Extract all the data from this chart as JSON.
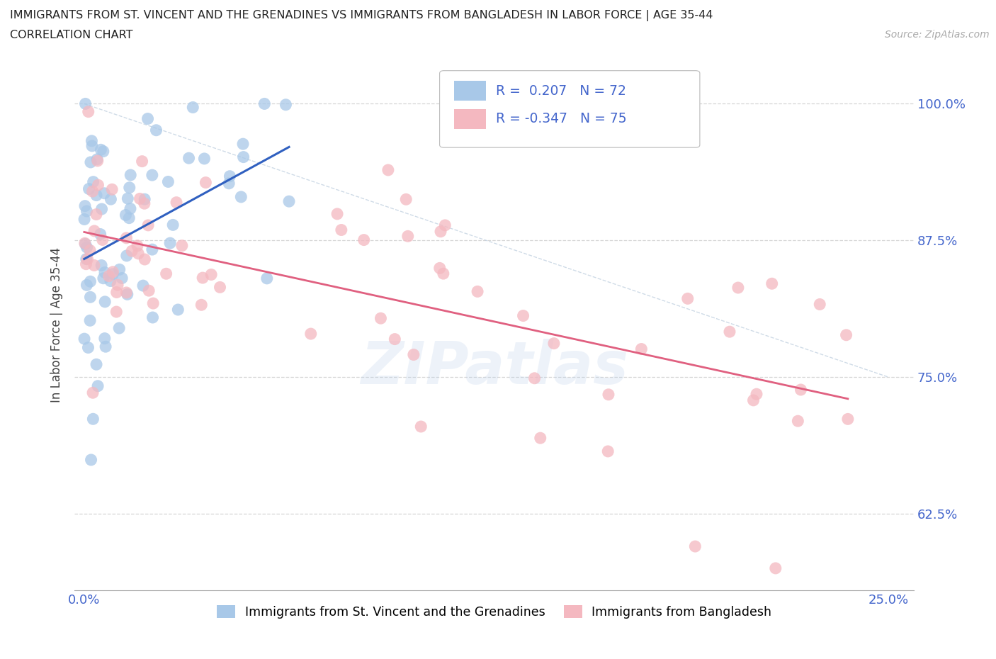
{
  "title_line1": "IMMIGRANTS FROM ST. VINCENT AND THE GRENADINES VS IMMIGRANTS FROM BANGLADESH IN LABOR FORCE | AGE 35-44",
  "title_line2": "CORRELATION CHART",
  "source_text": "Source: ZipAtlas.com",
  "ylabel": "In Labor Force | Age 35-44",
  "watermark": "ZIPatlas",
  "legend_label1": "Immigrants from St. Vincent and the Grenadines",
  "legend_label2": "Immigrants from Bangladesh",
  "R1": 0.207,
  "N1": 72,
  "R2": -0.347,
  "N2": 75,
  "color1": "#a8c8e8",
  "color2": "#f4b8c0",
  "line_color1": "#3060c0",
  "line_color2": "#e06080",
  "diag_line_color": "#bbccdd",
  "grid_color": "#cccccc",
  "ytick_values": [
    0.625,
    0.75,
    0.875,
    1.0
  ],
  "ytick_labels": [
    "62.5%",
    "75.0%",
    "87.5%",
    "100.0%"
  ],
  "xtick_values": [
    0.0,
    0.25
  ],
  "xtick_labels": [
    "0.0%",
    "25.0%"
  ],
  "xlim": [
    -0.003,
    0.258
  ],
  "ylim": [
    0.555,
    1.04
  ],
  "tick_color": "#4466cc",
  "blue_line_x0": 0.0,
  "blue_line_y0": 0.855,
  "blue_line_x1": 0.06,
  "blue_line_y1": 0.92,
  "pink_line_x0": 0.0,
  "pink_line_y0": 0.875,
  "pink_line_x1": 0.25,
  "pink_line_y1": 0.72
}
